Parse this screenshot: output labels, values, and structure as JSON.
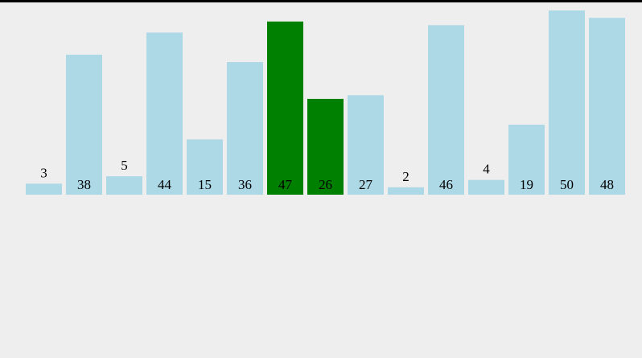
{
  "chart_data": {
    "type": "bar",
    "values": [
      3,
      38,
      5,
      44,
      15,
      36,
      47,
      26,
      27,
      2,
      46,
      4,
      19,
      50,
      48
    ],
    "colors": [
      "#add8e6",
      "#add8e6",
      "#add8e6",
      "#add8e6",
      "#add8e6",
      "#add8e6",
      "#008000",
      "#008000",
      "#add8e6",
      "#add8e6",
      "#add8e6",
      "#add8e6",
      "#add8e6",
      "#add8e6",
      "#add8e6"
    ]
  }
}
